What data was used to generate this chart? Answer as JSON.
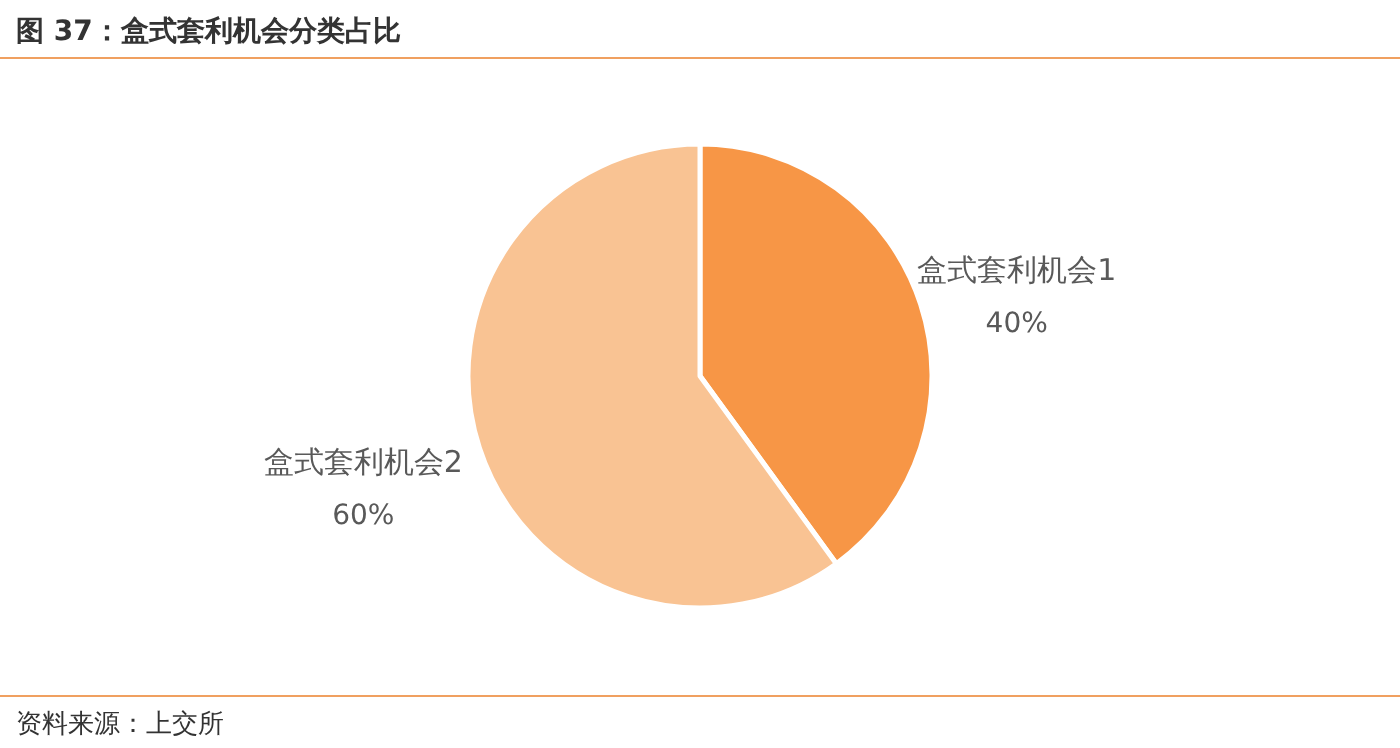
{
  "chart_data": {
    "type": "pie",
    "title": "图 37：盒式套利机会分类占比",
    "categories": [
      "盒式套利机会1",
      "盒式套利机会2"
    ],
    "values": [
      40,
      60
    ],
    "colors": [
      "#f79646",
      "#f9c393"
    ],
    "value_labels": [
      "40%",
      "60%"
    ],
    "annotations": [
      "资料来源：上交所"
    ]
  }
}
